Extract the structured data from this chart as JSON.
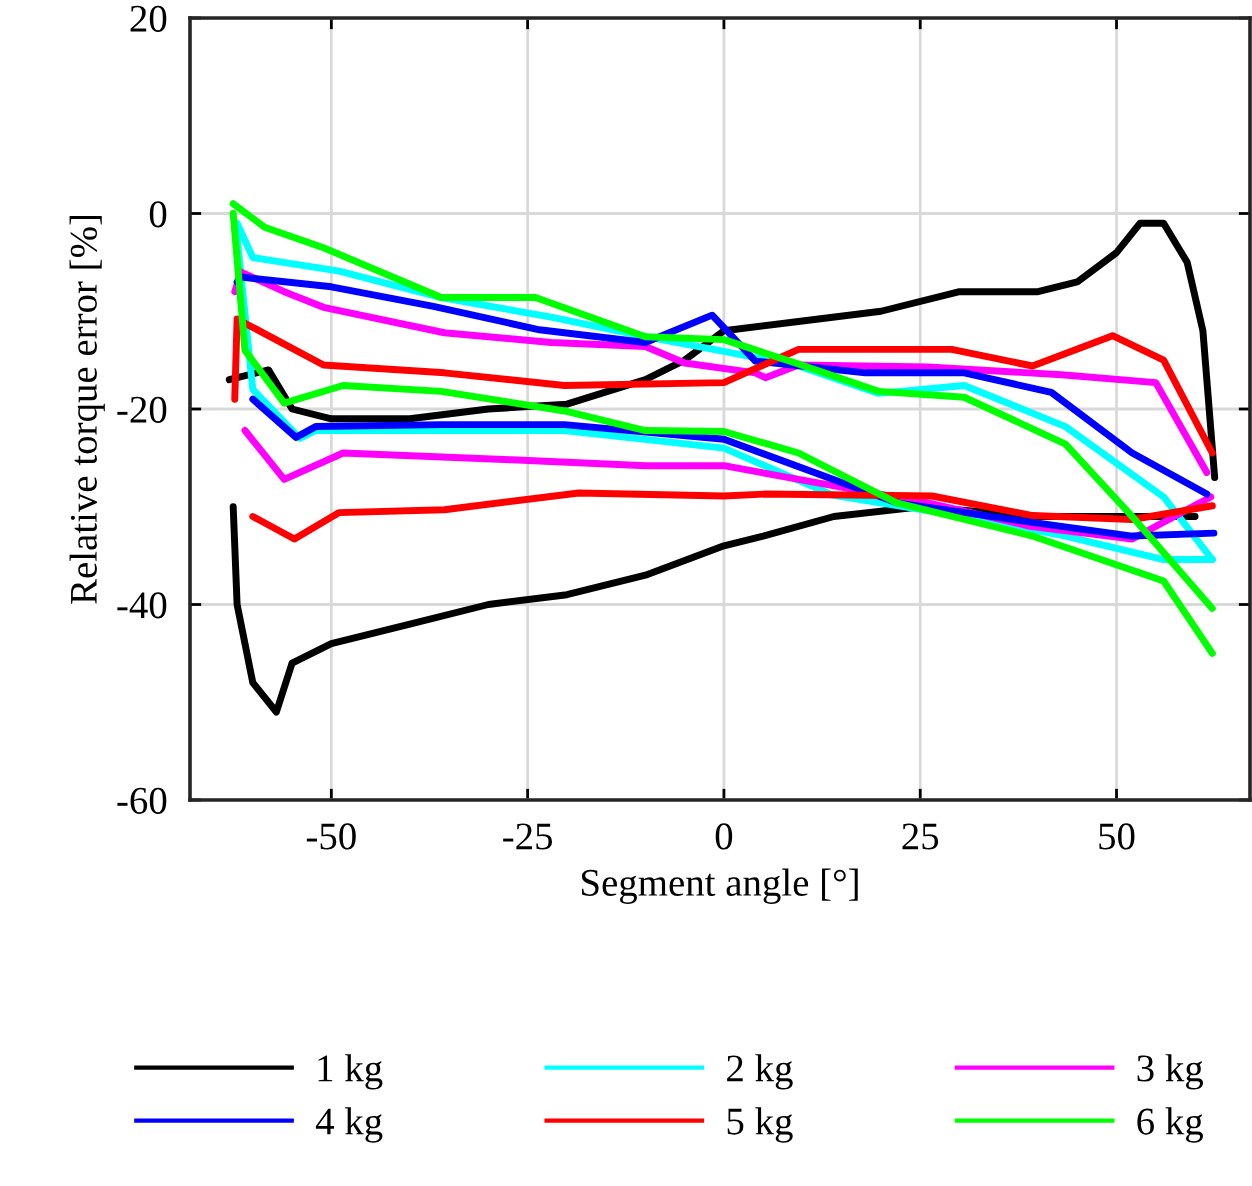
{
  "chart_data": {
    "type": "line",
    "xlabel": "Segment angle [°]",
    "ylabel": "Relative torque error [%]",
    "xlim": [
      -68,
      67
    ],
    "xticks": [
      -50,
      -25,
      0,
      25,
      50
    ],
    "ylim": [
      -60,
      20
    ],
    "yticks": [
      -60,
      -40,
      -20,
      0,
      20
    ],
    "grid": true,
    "legend": "bottom",
    "marker": "none",
    "line_style": "solid",
    "series": [
      {
        "name": "1 kg",
        "color": "#000000",
        "x": [
          -63,
          -58,
          -55,
          -50,
          -40,
          -30,
          -20,
          -10,
          -5,
          0,
          10,
          20,
          30,
          40,
          45,
          50,
          53,
          56,
          59,
          61,
          62,
          62.5
        ],
        "values": [
          -17,
          -16,
          -20,
          -21,
          -21,
          -20,
          -19.5,
          -17,
          -15,
          -12,
          -11,
          -10,
          -8,
          -8,
          -7,
          -4,
          -1,
          -1,
          -5,
          -12,
          -22,
          -27
        ]
      },
      {
        "color": "#000000",
        "x": [
          -62.5,
          -62,
          -60,
          -57,
          -55,
          -50,
          -40,
          -30,
          -20,
          -10,
          0,
          5,
          14,
          25,
          40,
          50,
          55,
          60
        ],
        "values": [
          -30,
          -40,
          -48,
          -51,
          -46,
          -44,
          -42,
          -40,
          -39,
          -37,
          -34,
          -33,
          -31,
          -30,
          -31,
          -31,
          -31,
          -31
        ]
      },
      {
        "name": "2 kg",
        "color": "#00ffff",
        "x": [
          -62,
          -60,
          -49,
          -36,
          -22,
          -10,
          0,
          9.5,
          19.7,
          30.6,
          43.5,
          56,
          62.2
        ],
        "values": [
          -1,
          -4.5,
          -5.9,
          -8.6,
          -10.6,
          -12.6,
          -14.1,
          -15.6,
          -18.4,
          -17.6,
          -21.8,
          -29,
          -35.4
        ]
      },
      {
        "color": "#00ffff",
        "x": [
          -62,
          -60,
          -54,
          -52,
          -36,
          -20.3,
          0,
          13.8,
          30.6,
          43.5,
          56,
          62.2
        ],
        "values": [
          -2.5,
          -18,
          -23,
          -22.2,
          -22.2,
          -22.2,
          -24,
          -28.8,
          -31,
          -33,
          -35.4,
          -35.4
        ]
      },
      {
        "name": "3 kg",
        "color": "#ff00ff",
        "x": [
          -62.3,
          -61.5,
          -56,
          -51,
          -35.6,
          -22,
          -10,
          -5,
          4,
          5.3,
          9.5,
          26,
          43,
          55,
          61.5
        ],
        "values": [
          -8,
          -6,
          -8,
          -9.6,
          -12.2,
          -13.2,
          -13.6,
          -15.3,
          -16.3,
          -16.8,
          -15.5,
          -15.7,
          -16.5,
          -17.3,
          -26.5
        ]
      },
      {
        "color": "#ff00ff",
        "x": [
          -61,
          -56,
          -48.5,
          -27,
          -10,
          0,
          9.5,
          26,
          39,
          52,
          62
        ],
        "values": [
          -22.2,
          -27.2,
          -24.5,
          -25.2,
          -25.8,
          -25.8,
          -27.2,
          -29.6,
          -32,
          -33.3,
          -29
        ]
      },
      {
        "name": "4 kg",
        "color": "#0000ff",
        "x": [
          -62,
          -61.5,
          -50,
          -37,
          -23.5,
          -10,
          -1.5,
          4,
          18,
          30.6,
          41.7,
          52,
          61.5
        ],
        "values": [
          -7,
          -6.5,
          -7.5,
          -9.5,
          -11.9,
          -13.2,
          -10.4,
          -15.1,
          -16.3,
          -16.3,
          -18.3,
          -24.5,
          -28.7
        ]
      },
      {
        "color": "#0000ff",
        "x": [
          -60,
          -54.5,
          -52,
          -36,
          -20.3,
          0,
          22,
          39.3,
          52,
          62.4
        ],
        "values": [
          -19,
          -22.9,
          -21.8,
          -21.6,
          -21.6,
          -23.1,
          -29.6,
          -31.6,
          -33,
          -32.7
        ]
      },
      {
        "name": "5 kg",
        "color": "#ff0000",
        "x": [
          -62.3,
          -62,
          -51,
          -35.6,
          -20.3,
          0,
          9.5,
          29,
          39.3,
          49.5,
          56,
          62.2
        ],
        "values": [
          -19,
          -10.8,
          -15.5,
          -16.3,
          -17.6,
          -17.3,
          -13.9,
          -13.9,
          -15.6,
          -12.5,
          -15,
          -24.5
        ]
      },
      {
        "color": "#ff0000",
        "x": [
          -60,
          -54.7,
          -49,
          -35.6,
          -18.5,
          0,
          5.3,
          26.5,
          39.3,
          52,
          62.2
        ],
        "values": [
          -31,
          -33.3,
          -30.6,
          -30.3,
          -28.6,
          -28.9,
          -28.7,
          -28.9,
          -30.9,
          -31.3,
          -29.9
        ]
      },
      {
        "name": "6 kg",
        "color": "#00ff00",
        "x": [
          -62.5,
          -58.5,
          -51,
          -36,
          -24,
          -10,
          0,
          9.5,
          19.7,
          30.6,
          43.5,
          52,
          62.2
        ],
        "values": [
          1,
          -1.4,
          -3.5,
          -8.6,
          -8.6,
          -12.6,
          -12.9,
          -15.4,
          -18.2,
          -18.8,
          -23.6,
          -31,
          -40.4
        ]
      },
      {
        "color": "#00ff00",
        "x": [
          -62.5,
          -61,
          -56,
          -48.5,
          -36,
          -20.3,
          -10,
          0,
          9.5,
          22,
          39.3,
          56,
          62.2
        ],
        "values": [
          0,
          -14,
          -19.4,
          -17.6,
          -18.2,
          -20.2,
          -22.2,
          -22.3,
          -24.5,
          -29.6,
          -33,
          -37.6,
          -45
        ]
      }
    ]
  }
}
